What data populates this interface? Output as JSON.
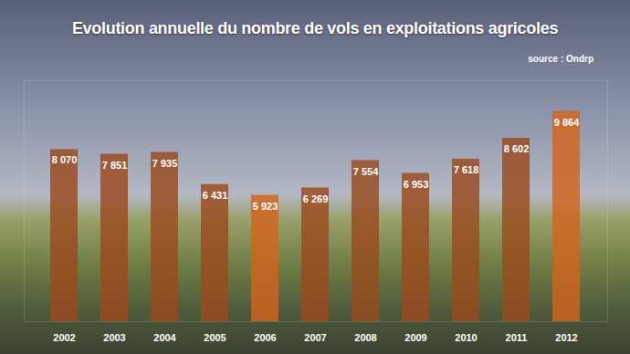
{
  "chart_data": {
    "type": "bar",
    "title": "Evolution annuelle du nombre de vols en exploitations agricoles",
    "subtitle": "source : Ondrp",
    "categories": [
      "2002",
      "2003",
      "2004",
      "2005",
      "2006",
      "2007",
      "2008",
      "2009",
      "2010",
      "2011",
      "2012"
    ],
    "values": [
      8070,
      7851,
      7935,
      6431,
      5923,
      6269,
      7554,
      6953,
      7618,
      8602,
      9864
    ],
    "value_labels": [
      "8 070",
      "7 851",
      "7 935",
      "6 431",
      "5 923",
      "6 269",
      "7 554",
      "6 953",
      "7 618",
      "8 602",
      "9 864"
    ],
    "colors": [
      "#9a4a1f",
      "#9a4a1f",
      "#9a4a1f",
      "#9a4a1f",
      "#d2641e",
      "#9a4a1f",
      "#9a4a1f",
      "#9a4a1f",
      "#9a4a1f",
      "#9a4a1f",
      "#d2641e"
    ],
    "ylim": [
      0,
      11300
    ],
    "data_labels": true,
    "tick_labels": "x",
    "grid": false
  }
}
